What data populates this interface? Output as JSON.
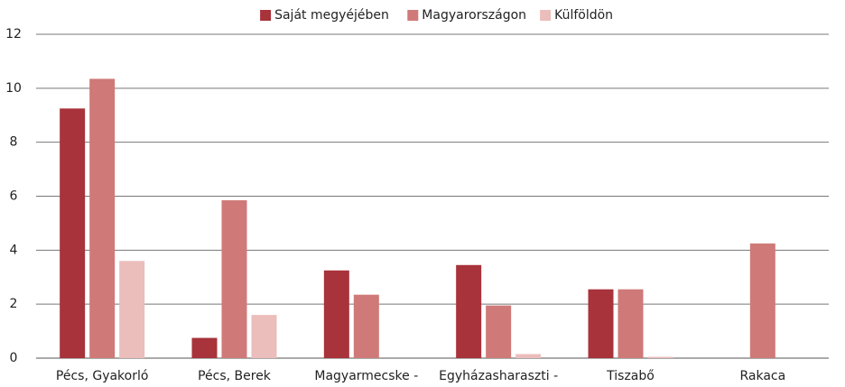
{
  "chart_data": {
    "type": "bar",
    "categories": [
      "Pécs, Gyakorló",
      "Pécs, Berek",
      "Magyarmecske -",
      "Egyházasharaszti -",
      "Tiszabő",
      "Rakaca"
    ],
    "series": [
      {
        "name": "Saját megyéjében",
        "color": "#a8333b",
        "values": [
          9.25,
          0.75,
          3.25,
          3.45,
          2.55,
          0
        ]
      },
      {
        "name": "Magyarországon",
        "color": "#cf7a78",
        "values": [
          10.35,
          5.85,
          2.35,
          1.95,
          2.55,
          4.25
        ]
      },
      {
        "name": "Külföldön",
        "color": "#ebbdbb",
        "values": [
          3.6,
          1.6,
          0,
          0.15,
          0.05,
          0
        ]
      }
    ],
    "ylim": [
      0,
      12
    ],
    "yticks": [
      0,
      2,
      4,
      6,
      8,
      10,
      12
    ],
    "grid": true,
    "legend": "top"
  }
}
